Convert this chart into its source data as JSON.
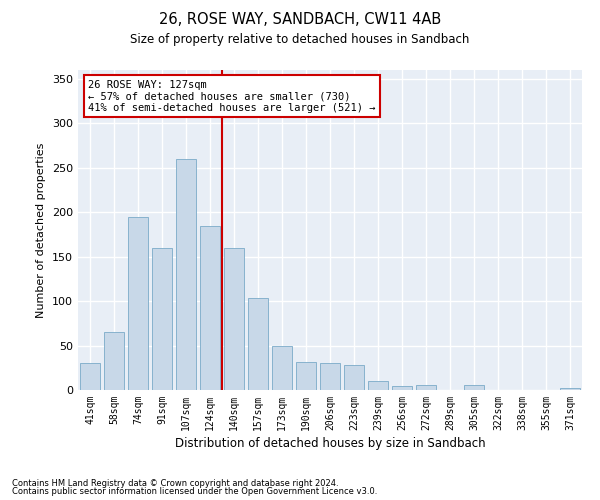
{
  "title1": "26, ROSE WAY, SANDBACH, CW11 4AB",
  "title2": "Size of property relative to detached houses in Sandbach",
  "xlabel": "Distribution of detached houses by size in Sandbach",
  "ylabel": "Number of detached properties",
  "categories": [
    "41sqm",
    "58sqm",
    "74sqm",
    "91sqm",
    "107sqm",
    "124sqm",
    "140sqm",
    "157sqm",
    "173sqm",
    "190sqm",
    "206sqm",
    "223sqm",
    "239sqm",
    "256sqm",
    "272sqm",
    "289sqm",
    "305sqm",
    "322sqm",
    "338sqm",
    "355sqm",
    "371sqm"
  ],
  "values": [
    30,
    65,
    195,
    160,
    260,
    185,
    160,
    103,
    50,
    32,
    30,
    28,
    10,
    5,
    6,
    0,
    6,
    0,
    0,
    0,
    2
  ],
  "bar_color": "#c8d8e8",
  "bar_edge_color": "#7aaac8",
  "bg_color": "#e8eef6",
  "vline_x": 5.5,
  "vline_color": "#cc0000",
  "annotation_lines": [
    "26 ROSE WAY: 127sqm",
    "← 57% of detached houses are smaller (730)",
    "41% of semi-detached houses are larger (521) →"
  ],
  "annotation_box_color": "#cc0000",
  "footnote1": "Contains HM Land Registry data © Crown copyright and database right 2024.",
  "footnote2": "Contains public sector information licensed under the Open Government Licence v3.0.",
  "ylim": [
    0,
    360
  ],
  "yticks": [
    0,
    50,
    100,
    150,
    200,
    250,
    300,
    350
  ]
}
